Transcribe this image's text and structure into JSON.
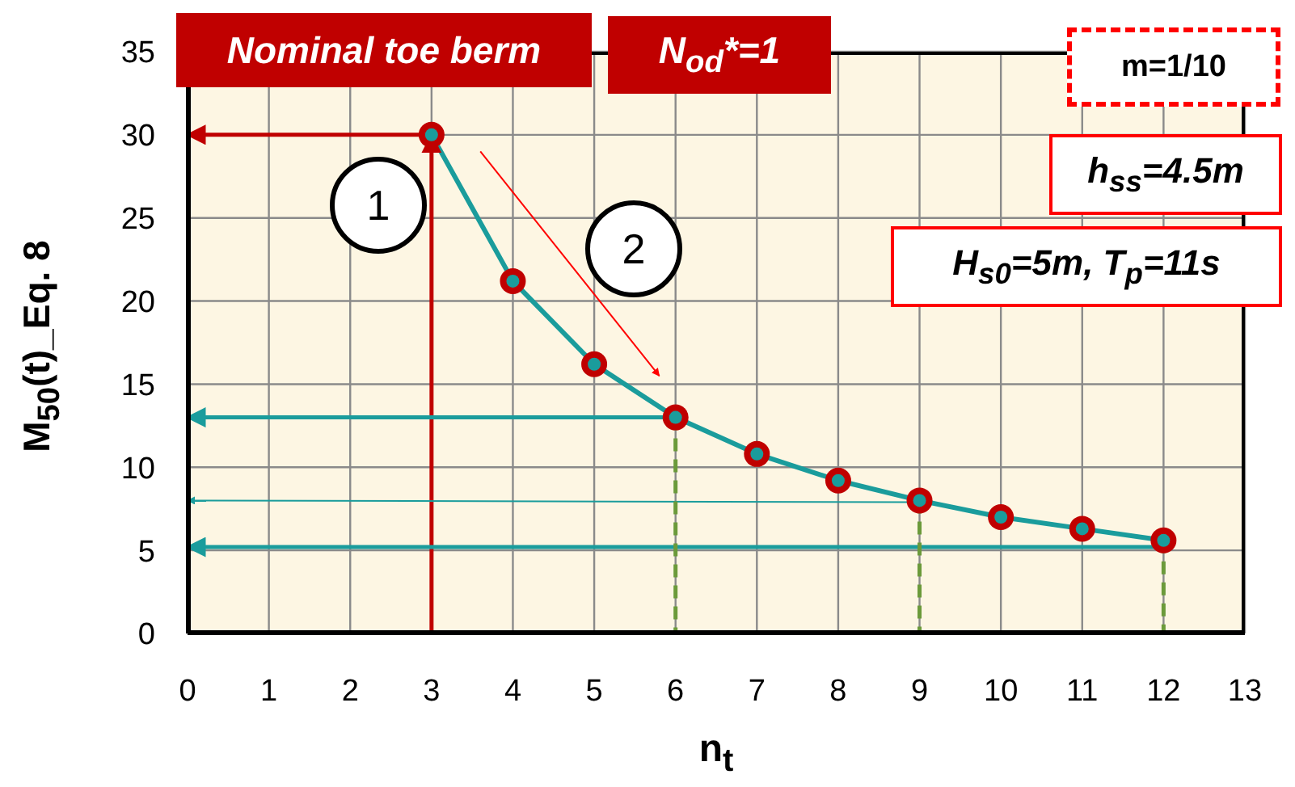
{
  "chart_data": {
    "type": "line",
    "xlabel": "n$_{t}$",
    "ylabel": "M$_{50}$(t)_Eq. 8",
    "annotations": [
      "Nominal toe berm",
      "N$_{od}$*=1",
      "m=1/10",
      "h$_{ss}$=4.5m",
      "H$_{s0}$=5m, T$_{p}$=11s",
      "1",
      "2"
    ],
    "xlim": [
      0,
      13
    ],
    "xticks": [
      0,
      1,
      2,
      3,
      4,
      5,
      6,
      7,
      8,
      9,
      10,
      11,
      12,
      13
    ],
    "ylim": [
      0,
      35
    ],
    "yticks": [
      0,
      5,
      10,
      15,
      20,
      25,
      30,
      35
    ],
    "grid": true,
    "series": [
      {
        "color": "#1a9c9c",
        "x": [
          3,
          4,
          5,
          6,
          7,
          8,
          9,
          10,
          11,
          12
        ],
        "values": [
          30,
          21.2,
          16.2,
          13,
          10.8,
          9.2,
          8,
          7,
          6.3,
          5.6
        ],
        "marker": "circle",
        "line_style": "solid"
      },
      {
        "color": "#c00000",
        "x": [
          3,
          0
        ],
        "values": [
          30,
          30
        ],
        "line_style": "solid"
      },
      {
        "color": "#c00000",
        "x": [
          3,
          3
        ],
        "values": [
          0,
          30
        ],
        "line_style": "solid"
      },
      {
        "color": "#ff0000",
        "x": [
          3.6,
          5.8
        ],
        "values": [
          29,
          15.5
        ],
        "line_style": "solid"
      },
      {
        "color": "#1a9c9c",
        "x": [
          6,
          0
        ],
        "values": [
          13,
          13
        ],
        "line_style": "solid"
      },
      {
        "color": "#1a9c9c",
        "x": [
          9,
          0
        ],
        "values": [
          7.9,
          8
        ],
        "line_style": "solid"
      },
      {
        "color": "#1a9c9c",
        "x": [
          12,
          0
        ],
        "values": [
          5.2,
          5.2
        ],
        "line_style": "solid"
      },
      {
        "color": "#6b9a3a",
        "x": [
          6,
          6
        ],
        "values": [
          13,
          0
        ],
        "line_style": "dashed"
      },
      {
        "color": "#6b9a3a",
        "x": [
          9,
          9
        ],
        "values": [
          8,
          0
        ],
        "line_style": "dashed"
      },
      {
        "color": "#6b9a3a",
        "x": [
          12,
          12
        ],
        "values": [
          5.6,
          0
        ],
        "line_style": "dashed"
      }
    ]
  }
}
